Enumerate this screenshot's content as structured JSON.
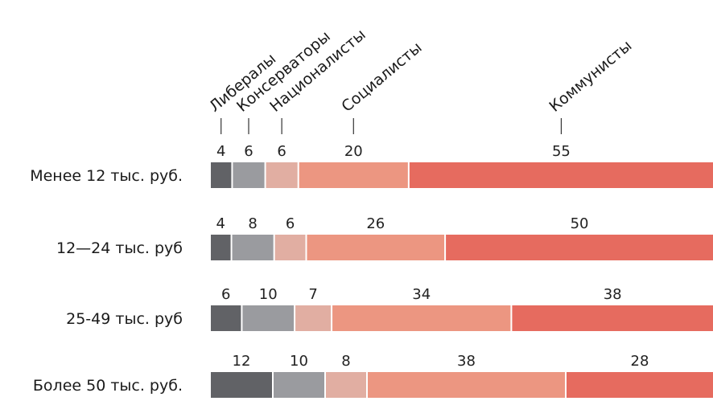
{
  "chart_data": {
    "type": "bar",
    "stacked": true,
    "orientation": "horizontal",
    "grid": false,
    "legend_placement": "top, rotated labels above first row",
    "categories": [
      "Менее 12 тыс. руб.",
      "12—24 тыс. руб",
      "25-49 тыс. руб",
      "Более 50 тыс. руб."
    ],
    "series": [
      {
        "name": "Либералы",
        "color": "#616266",
        "values": [
          4,
          4,
          6,
          12
        ]
      },
      {
        "name": "Консерваторы",
        "color": "#9a9b9f",
        "values": [
          6,
          8,
          10,
          10
        ]
      },
      {
        "name": "Националисты",
        "color": "#e1aea2",
        "values": [
          6,
          6,
          7,
          8
        ]
      },
      {
        "name": "Социалисты",
        "color": "#ec9681",
        "values": [
          20,
          26,
          34,
          38
        ]
      },
      {
        "name": "Коммунисты",
        "color": "#e66b5f",
        "values": [
          55,
          50,
          38,
          28
        ]
      }
    ]
  }
}
